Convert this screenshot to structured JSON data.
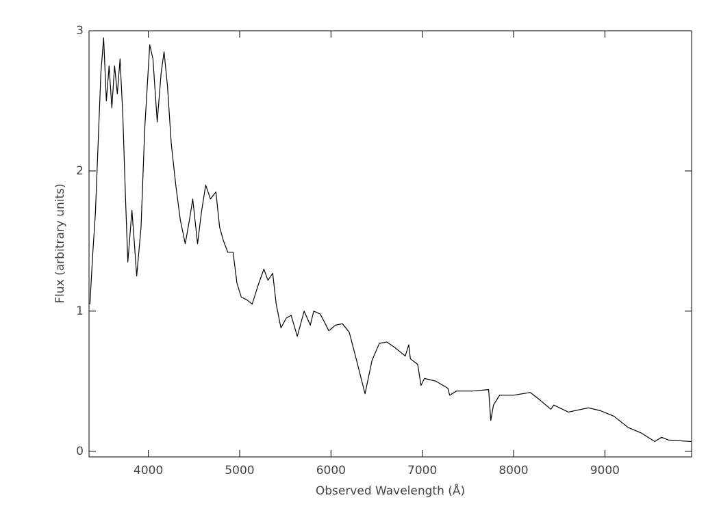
{
  "chart_data": {
    "type": "line",
    "x_label": "Observed Wavelength (Å)",
    "y_label": "Flux (arbitrary units)",
    "xlim": [
      3350,
      9950
    ],
    "ylim": [
      -0.04,
      3.0
    ],
    "xticks": [
      4000,
      5000,
      6000,
      7000,
      8000,
      9000
    ],
    "yticks": [
      0,
      1,
      2,
      3
    ],
    "color": "#000000",
    "x": [
      3360,
      3390,
      3420,
      3450,
      3480,
      3510,
      3540,
      3570,
      3600,
      3630,
      3660,
      3690,
      3720,
      3750,
      3775,
      3820,
      3845,
      3872,
      3920,
      3960,
      4015,
      4050,
      4097,
      4140,
      4172,
      4210,
      4250,
      4300,
      4350,
      4404,
      4450,
      4486,
      4539,
      4580,
      4628,
      4680,
      4740,
      4780,
      4823,
      4870,
      4928,
      4970,
      5018,
      5080,
      5137,
      5200,
      5265,
      5310,
      5362,
      5400,
      5452,
      5510,
      5564,
      5631,
      5706,
      5774,
      5811,
      5880,
      5930,
      5976,
      6050,
      6125,
      6200,
      6280,
      6373,
      6450,
      6530,
      6612,
      6700,
      6814,
      6852,
      6870,
      6950,
      6986,
      7024,
      7150,
      7280,
      7300,
      7375,
      7550,
      7727,
      7750,
      7780,
      7847,
      8000,
      8184,
      8300,
      8408,
      8440,
      8600,
      8820,
      8950,
      9100,
      9254,
      9400,
      9546,
      9621,
      9700,
      9943
    ],
    "values": [
      1.05,
      1.4,
      1.7,
      2.2,
      2.7,
      2.95,
      2.5,
      2.75,
      2.45,
      2.75,
      2.55,
      2.8,
      2.4,
      1.8,
      1.35,
      1.72,
      1.5,
      1.25,
      1.6,
      2.3,
      2.9,
      2.8,
      2.35,
      2.7,
      2.85,
      2.6,
      2.2,
      1.9,
      1.65,
      1.48,
      1.65,
      1.8,
      1.48,
      1.7,
      1.9,
      1.8,
      1.85,
      1.6,
      1.5,
      1.42,
      1.42,
      1.2,
      1.1,
      1.08,
      1.05,
      1.18,
      1.3,
      1.22,
      1.27,
      1.05,
      0.88,
      0.95,
      0.97,
      0.82,
      1.0,
      0.9,
      1.0,
      0.98,
      0.92,
      0.86,
      0.9,
      0.91,
      0.85,
      0.65,
      0.41,
      0.65,
      0.77,
      0.78,
      0.74,
      0.68,
      0.76,
      0.66,
      0.62,
      0.47,
      0.52,
      0.5,
      0.45,
      0.4,
      0.43,
      0.43,
      0.44,
      0.22,
      0.33,
      0.4,
      0.4,
      0.42,
      0.36,
      0.3,
      0.33,
      0.28,
      0.31,
      0.29,
      0.25,
      0.17,
      0.13,
      0.07,
      0.1,
      0.08,
      0.07
    ]
  }
}
